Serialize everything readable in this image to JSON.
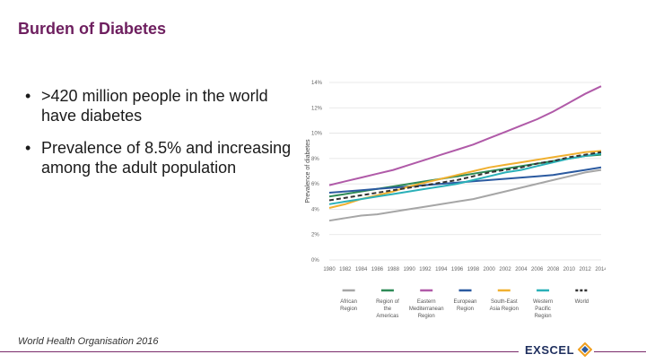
{
  "slide": {
    "title": "Burden of Diabetes",
    "bullets": [
      ">420 million people in the world have diabetes",
      "Prevalence of 8.5% and increasing among the adult population"
    ],
    "source": "World Health Organisation 2016",
    "logo_text": "EXSCEL"
  },
  "chart_data": {
    "type": "line",
    "title": "",
    "xlabel": "",
    "ylabel": "Prevalence of diabetes",
    "ylim": [
      0,
      14
    ],
    "y_ticks": [
      "0%",
      "2%",
      "4%",
      "6%",
      "8%",
      "10%",
      "12%",
      "14%"
    ],
    "x": [
      1980,
      1982,
      1984,
      1986,
      1988,
      1990,
      1992,
      1994,
      1996,
      1998,
      2000,
      2002,
      2004,
      2006,
      2008,
      2010,
      2012,
      2014
    ],
    "series": [
      {
        "name": "African Region",
        "color": "#a6a6a6",
        "dashed": false,
        "values": [
          3.1,
          3.3,
          3.5,
          3.6,
          3.8,
          4.0,
          4.2,
          4.4,
          4.6,
          4.8,
          5.1,
          5.4,
          5.7,
          6.0,
          6.3,
          6.6,
          6.9,
          7.1
        ]
      },
      {
        "name": "Region of the Americas",
        "color": "#2e8b57",
        "dashed": false,
        "values": [
          5.0,
          5.2,
          5.4,
          5.6,
          5.8,
          6.0,
          6.2,
          6.4,
          6.6,
          6.8,
          7.0,
          7.2,
          7.4,
          7.6,
          7.8,
          8.0,
          8.2,
          8.3
        ]
      },
      {
        "name": "Eastern Mediterranean Region",
        "color": "#b05aa8",
        "dashed": false,
        "values": [
          5.9,
          6.2,
          6.5,
          6.8,
          7.1,
          7.5,
          7.9,
          8.3,
          8.7,
          9.1,
          9.6,
          10.1,
          10.6,
          11.1,
          11.7,
          12.4,
          13.1,
          13.7
        ]
      },
      {
        "name": "European Region",
        "color": "#2b5aa0",
        "dashed": false,
        "values": [
          5.3,
          5.4,
          5.5,
          5.6,
          5.7,
          5.8,
          5.9,
          6.0,
          6.1,
          6.2,
          6.3,
          6.4,
          6.5,
          6.6,
          6.7,
          6.9,
          7.1,
          7.3
        ]
      },
      {
        "name": "South-East Asia Region",
        "color": "#f0b030",
        "dashed": false,
        "values": [
          4.1,
          4.4,
          4.8,
          5.1,
          5.4,
          5.8,
          6.1,
          6.4,
          6.7,
          7.0,
          7.3,
          7.5,
          7.7,
          7.9,
          8.1,
          8.3,
          8.5,
          8.6
        ]
      },
      {
        "name": "Western Pacific Region",
        "color": "#2ab0b8",
        "dashed": false,
        "values": [
          4.4,
          4.6,
          4.8,
          5.0,
          5.2,
          5.4,
          5.6,
          5.8,
          6.0,
          6.3,
          6.6,
          6.9,
          7.1,
          7.4,
          7.7,
          8.0,
          8.2,
          8.4
        ]
      },
      {
        "name": "World",
        "color": "#333333",
        "dashed": true,
        "values": [
          4.7,
          4.9,
          5.1,
          5.3,
          5.5,
          5.7,
          5.9,
          6.1,
          6.3,
          6.6,
          6.9,
          7.1,
          7.3,
          7.6,
          7.8,
          8.1,
          8.3,
          8.5
        ]
      }
    ],
    "legend": [
      {
        "label": "African Region"
      },
      {
        "label": "Region of the Americas"
      },
      {
        "label": "Eastern Mediterranean Region"
      },
      {
        "label": "European Region"
      },
      {
        "label": "South-East Asia Region"
      },
      {
        "label": "Western Pacific Region"
      },
      {
        "label": "World"
      }
    ]
  }
}
